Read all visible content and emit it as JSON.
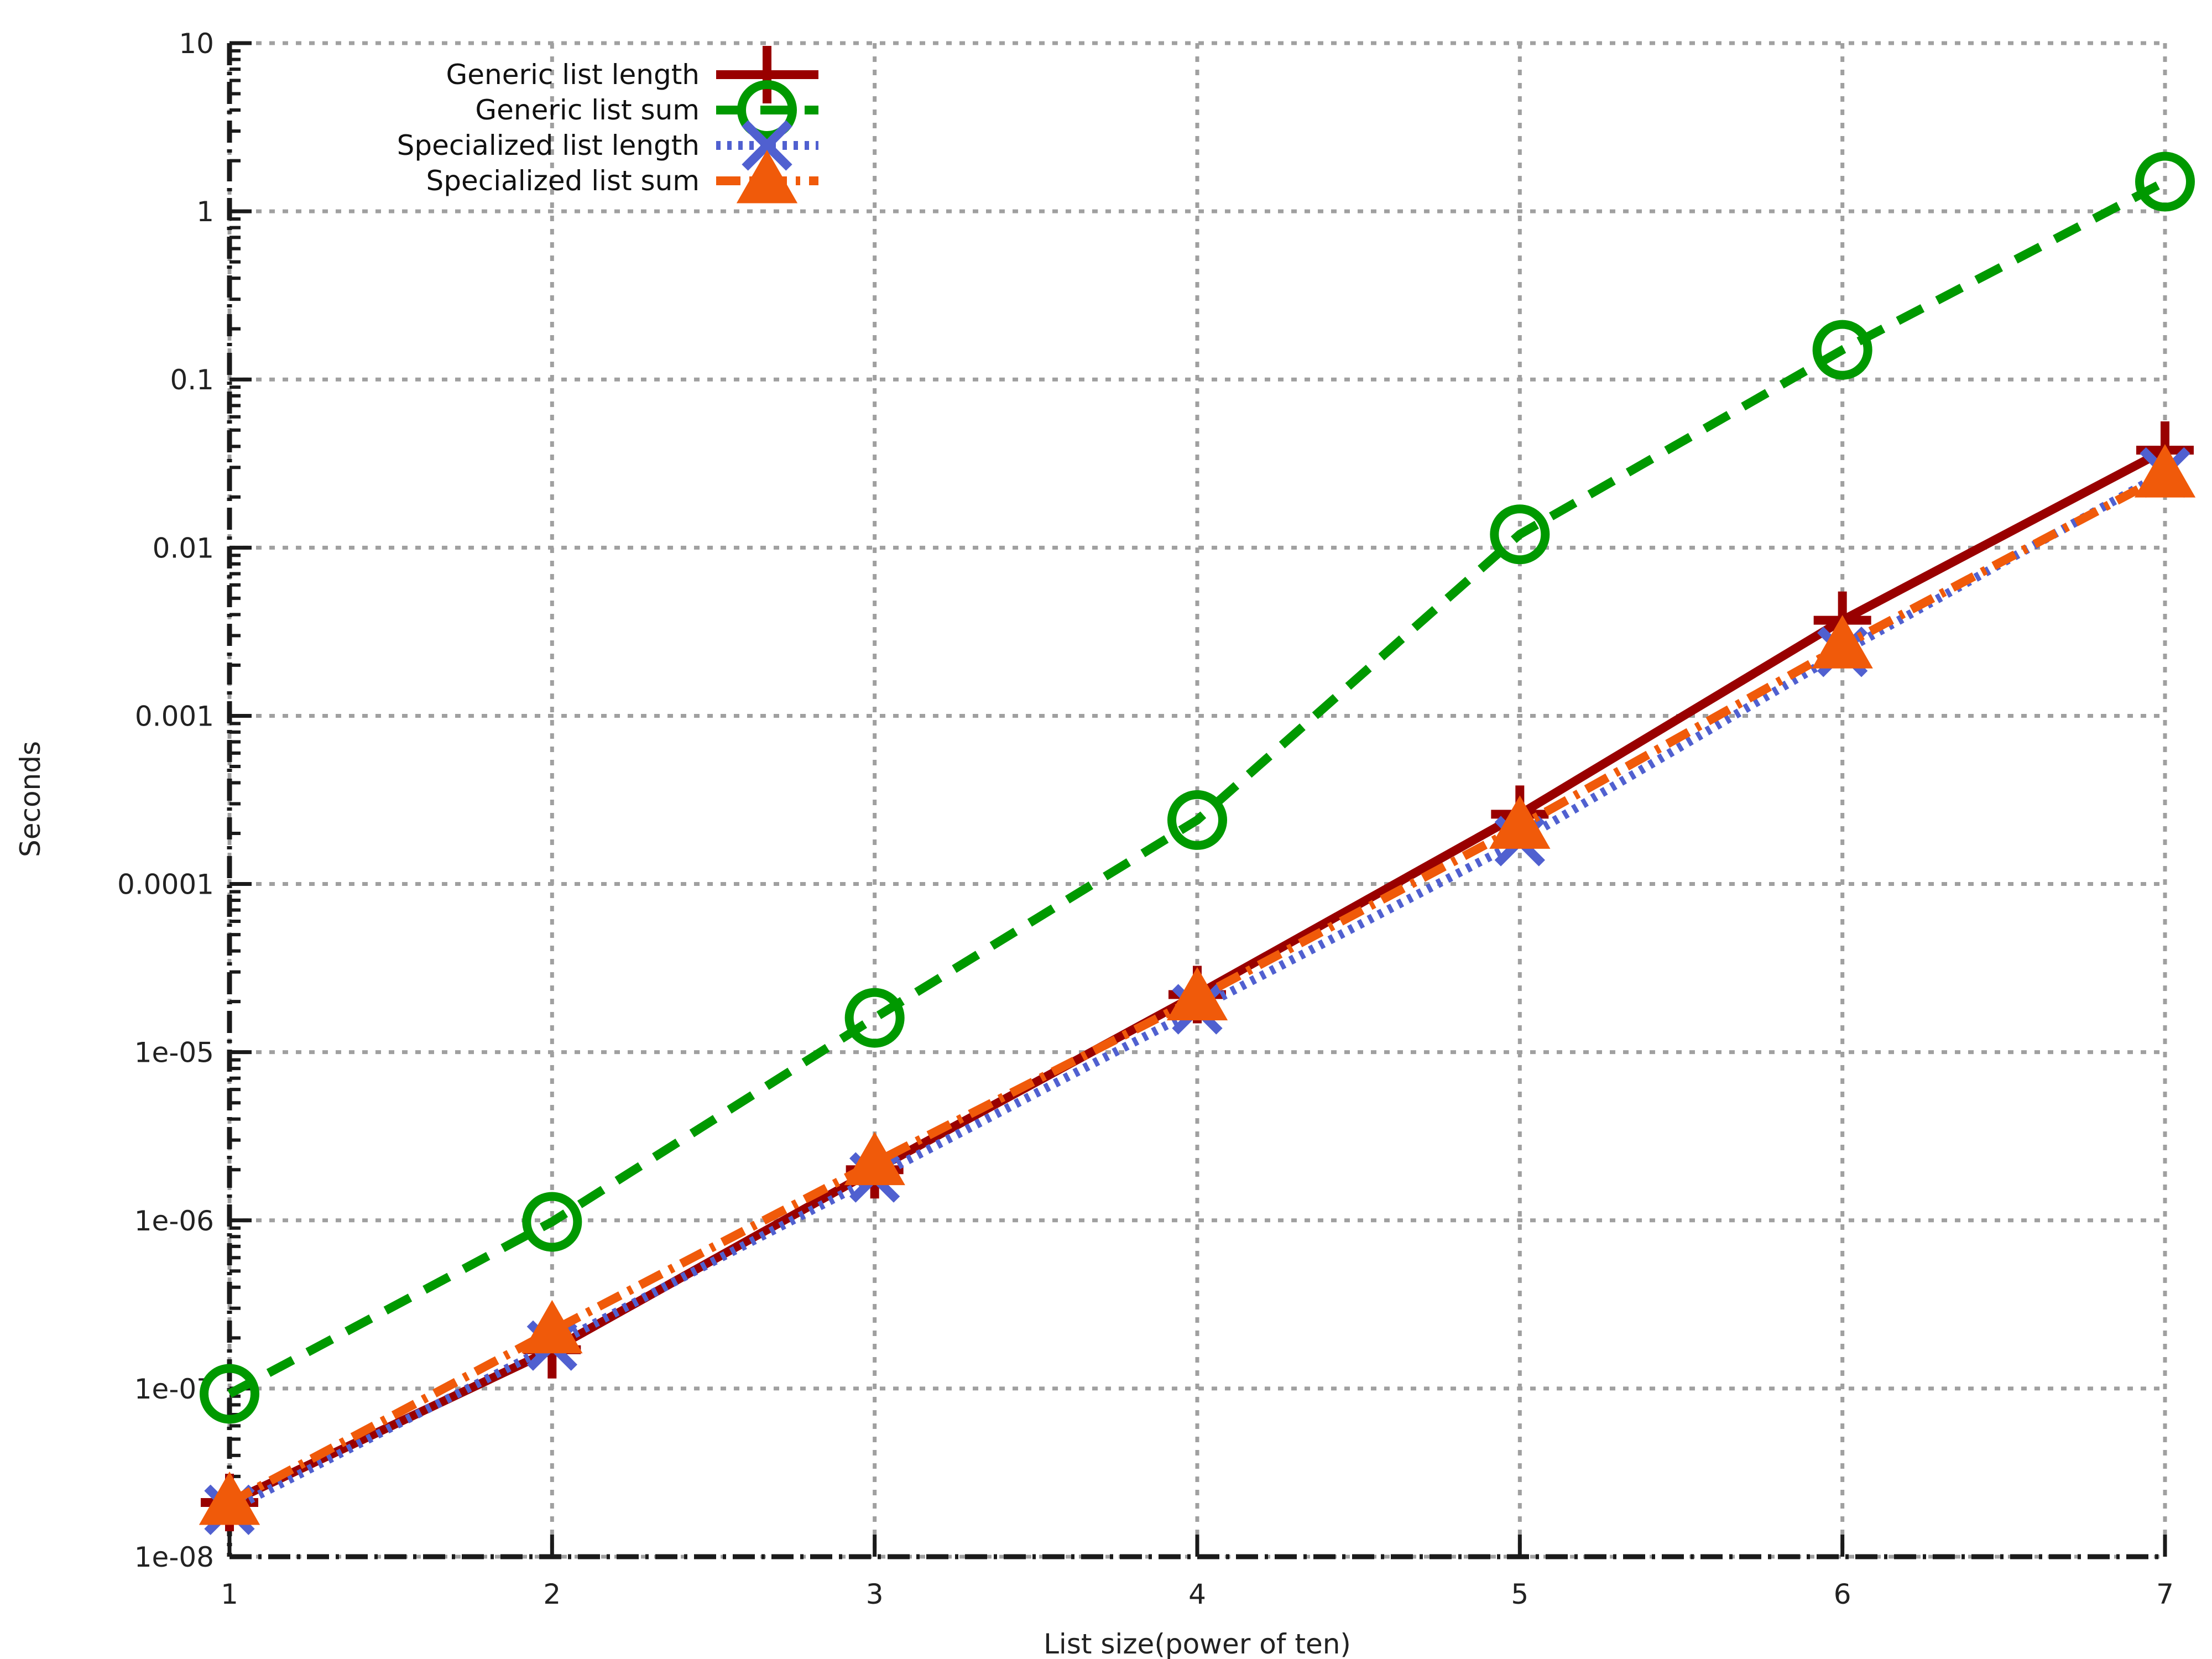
{
  "chart_data": {
    "type": "line",
    "title": "",
    "xlabel": "List size(power of ten)",
    "ylabel": "Seconds",
    "x": [
      1,
      2,
      3,
      4,
      5,
      6,
      7
    ],
    "xlim": [
      1,
      7
    ],
    "ylim": [
      1e-08,
      10
    ],
    "yscale": "log",
    "grid": true,
    "legend_position": "top-left",
    "x_tick_labels": [
      "1",
      "2",
      "3",
      "4",
      "5",
      "6",
      "7"
    ],
    "y_tick_values": [
      1e-08,
      1e-07,
      1e-06,
      1e-05,
      0.0001,
      0.001,
      0.01,
      0.1,
      1,
      10
    ],
    "y_tick_labels": [
      "1e-08",
      "1e-07",
      "1e-06",
      "1e-05",
      "0.0001",
      "0.001",
      "0.01",
      "0.1",
      "1",
      "10"
    ],
    "series": [
      {
        "name": "Generic list length",
        "values": [
          2.1e-08,
          1.7e-07,
          2e-06,
          2.2e-05,
          0.00026,
          0.0037,
          0.038
        ],
        "color": "#990000",
        "dash": "solid",
        "marker": "plus"
      },
      {
        "name": "Generic list sum",
        "values": [
          9.3e-08,
          9.8e-07,
          1.6e-05,
          0.00024,
          0.012,
          0.15,
          1.5
        ],
        "color": "#009900",
        "dash": "dashed",
        "marker": "circle"
      },
      {
        "name": "Specialized list length",
        "values": [
          1.9e-08,
          1.8e-07,
          1.8e-06,
          1.8e-05,
          0.00018,
          0.0024,
          0.028
        ],
        "color": "#5060d0",
        "dash": "dotted",
        "marker": "cross"
      },
      {
        "name": "Specialized list sum",
        "values": [
          2.1e-08,
          2.2e-07,
          2.2e-06,
          2.1e-05,
          0.00022,
          0.0026,
          0.027
        ],
        "color": "#f05a0a",
        "dash": "dashdot",
        "marker": "triangle"
      }
    ]
  }
}
